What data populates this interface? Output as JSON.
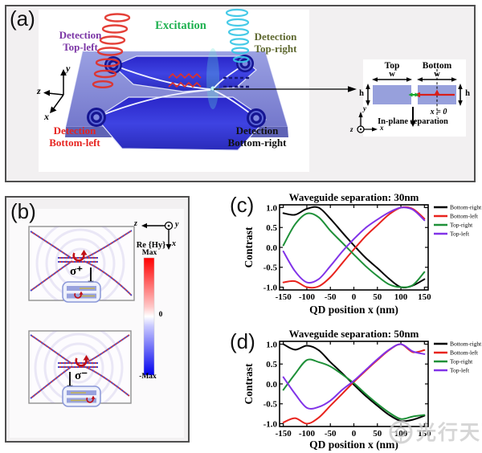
{
  "panels": {
    "a_label": "(a)",
    "b_label": "(b)",
    "c_label": "(c)",
    "d_label": "(d)"
  },
  "panel_a": {
    "excitation": "Excitation",
    "det_tl_1": "Detection",
    "det_tl_2": "Top-left",
    "det_tr_1": "Detection",
    "det_tr_2": "Top-right",
    "det_bl_1": "Detection",
    "det_bl_2": "Bottom-left",
    "det_br_1": "Detection",
    "det_br_2": "Bottom-right",
    "axis_y": "y",
    "axis_z": "z",
    "axis_x": "x",
    "inset": {
      "top": "Top",
      "bottom": "Bottom",
      "w_left": "w",
      "w_right": "w",
      "h_left": "h",
      "h_right": "h",
      "x_zero": "x = 0",
      "separation": "In-plane separation",
      "axis_y": "y",
      "axis_x": "x",
      "axis_z": "z"
    },
    "colors": {
      "label_purple": "#7b35a5",
      "label_green": "#1fb150",
      "label_olive": "#5d672e",
      "label_red": "#e62420",
      "label_black": "#111111"
    }
  },
  "panel_b": {
    "sigma_plus": "σ⁺",
    "sigma_minus": "σ⁻",
    "colorbar_title": "Re {Hy}",
    "colorbar_max": "Max",
    "colorbar_zero": "0",
    "colorbar_min": "-Max",
    "axis_z": "z",
    "axis_y": "y",
    "axis_x": "x"
  },
  "chart_data": [
    {
      "id": "chart-30nm",
      "type": "line",
      "title": "Waveguide separation:  30nm",
      "xlabel": "QD position  x (nm)",
      "ylabel": "Contrast",
      "xlim": [
        -158,
        158
      ],
      "ylim": [
        -1.07,
        1.07
      ],
      "grid": false,
      "legend_position": "right-top-outside",
      "xticks": [
        -150,
        -100,
        -50,
        0,
        50,
        100,
        150
      ],
      "yticks": [
        1.0,
        0.5,
        0.0,
        -0.5,
        -1.0
      ],
      "x": [
        -150,
        -125,
        -100,
        -75,
        -50,
        -25,
        0,
        25,
        50,
        75,
        100,
        125,
        150
      ],
      "series": [
        {
          "name": "Bottom-right",
          "color": "#000000",
          "values": [
            0.86,
            0.82,
            0.97,
            1.0,
            0.72,
            0.38,
            0.05,
            -0.26,
            -0.52,
            -0.79,
            -1.0,
            -0.96,
            -0.8
          ]
        },
        {
          "name": "Bottom-left",
          "color": "#e8231d",
          "values": [
            -0.88,
            -0.85,
            -1.0,
            -0.98,
            -0.75,
            -0.4,
            -0.05,
            0.28,
            0.56,
            0.83,
            1.0,
            0.97,
            0.72
          ]
        },
        {
          "name": "Top-right",
          "color": "#1e9038",
          "values": [
            0.05,
            0.58,
            0.85,
            0.76,
            0.42,
            0.12,
            -0.18,
            -0.47,
            -0.72,
            -0.93,
            -1.0,
            -0.95,
            -0.62
          ]
        },
        {
          "name": "Top-left",
          "color": "#8133e8",
          "values": [
            -0.1,
            -0.6,
            -0.88,
            -0.8,
            -0.47,
            -0.11,
            0.21,
            0.49,
            0.7,
            0.88,
            1.0,
            0.95,
            0.68
          ]
        }
      ]
    },
    {
      "id": "chart-50nm",
      "type": "line",
      "title": "Waveguide separation:  50nm",
      "xlabel": "QD position  x (nm)",
      "ylabel": "Contrast",
      "xlim": [
        -158,
        158
      ],
      "ylim": [
        -1.07,
        1.07
      ],
      "grid": false,
      "legend_position": "right-top-outside",
      "xticks": [
        -150,
        -100,
        -50,
        0,
        50,
        100,
        150
      ],
      "yticks": [
        1.0,
        0.5,
        0.0,
        -0.5,
        -1.0
      ],
      "x": [
        -150,
        -125,
        -100,
        -75,
        -50,
        -25,
        0,
        25,
        50,
        75,
        100,
        125,
        150
      ],
      "series": [
        {
          "name": "Bottom-right",
          "color": "#000000",
          "values": [
            1.0,
            0.86,
            0.96,
            0.85,
            0.55,
            0.27,
            -0.02,
            -0.3,
            -0.55,
            -0.78,
            -0.93,
            -0.9,
            -0.8
          ]
        },
        {
          "name": "Bottom-left",
          "color": "#e8231d",
          "values": [
            -0.97,
            -0.86,
            -1.0,
            -0.85,
            -0.55,
            -0.25,
            0.05,
            0.33,
            0.6,
            0.85,
            1.0,
            0.8,
            0.85
          ]
        },
        {
          "name": "Top-right",
          "color": "#1e9038",
          "values": [
            -0.15,
            0.25,
            0.6,
            0.55,
            0.44,
            0.24,
            0.02,
            -0.25,
            -0.5,
            -0.72,
            -0.88,
            -0.82,
            -0.78
          ]
        },
        {
          "name": "Top-left",
          "color": "#8133e8",
          "values": [
            0.17,
            -0.25,
            -0.6,
            -0.58,
            -0.42,
            -0.15,
            0.08,
            0.35,
            0.62,
            0.86,
            1.0,
            0.82,
            0.75
          ]
        }
      ]
    }
  ],
  "watermark": {
    "text": "光行天下"
  }
}
